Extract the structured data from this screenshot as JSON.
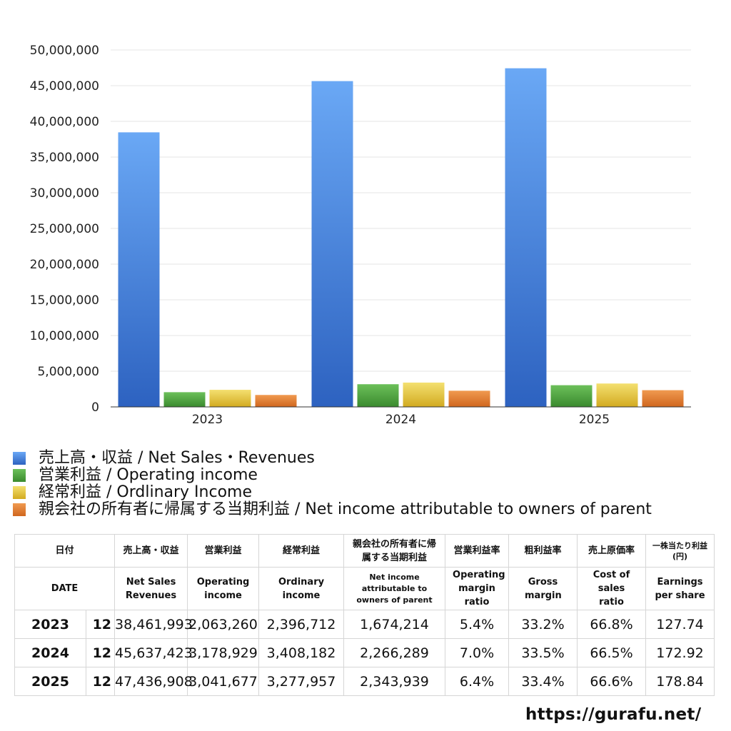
{
  "chart_data": {
    "type": "bar",
    "categories": [
      "2023",
      "2024",
      "2025"
    ],
    "series": [
      {
        "name": "売上高・収益 / Net Sales・Revenues",
        "color": "#3f7fd8",
        "values": [
          38461993,
          45637423,
          47436908
        ]
      },
      {
        "name": "営業利益 / Operating income",
        "color": "#4a9e3a",
        "values": [
          2063260,
          3178929,
          3041677
        ]
      },
      {
        "name": "経常利益 / Ordlinary Income",
        "color": "#e2c63a",
        "values": [
          2396712,
          3408182,
          3277957
        ]
      },
      {
        "name": "親会社の所有者に帰属する当期利益 / Net income attributable to owners of parent",
        "color": "#e07a30",
        "values": [
          1674214,
          2266289,
          2343939
        ]
      }
    ],
    "yticks": [
      "0",
      "5,000,000",
      "10,000,000",
      "15,000,000",
      "20,000,000",
      "25,000,000",
      "30,000,000",
      "35,000,000",
      "40,000,000",
      "45,000,000",
      "50,000,000"
    ],
    "ylim": [
      0,
      50000000
    ],
    "grid": true,
    "legend_position": "bottom-left"
  },
  "table": {
    "header_ja": [
      "日付",
      "売上高・収益",
      "営業利益",
      "経常利益",
      "親会社の所有者に帰属する当期利益",
      "営業利益率",
      "粗利益率",
      "売上原価率",
      "一株当たり利益(円)"
    ],
    "header_en": [
      "DATE",
      "Net Sales Revenues",
      "Operating income",
      "Ordinary income",
      "Net income attributable to owners of parent",
      "Operating margin ratio",
      "Gross margin",
      "Cost of sales ratio",
      "Earnings per share"
    ],
    "rows": [
      {
        "year": "2023",
        "month": "12",
        "cells": [
          "38,461,993",
          "2,063,260",
          "2,396,712",
          "1,674,214",
          "5.4%",
          "33.2%",
          "66.8%",
          "127.74"
        ]
      },
      {
        "year": "2024",
        "month": "12",
        "cells": [
          "45,637,423",
          "3,178,929",
          "3,408,182",
          "2,266,289",
          "7.0%",
          "33.5%",
          "66.5%",
          "172.92"
        ]
      },
      {
        "year": "2025",
        "month": "12",
        "cells": [
          "47,436,908",
          "3,041,677",
          "3,277,957",
          "2,343,939",
          "6.4%",
          "33.4%",
          "66.6%",
          "178.84"
        ]
      }
    ]
  },
  "footer": {
    "site": "https://gurafu.net/"
  }
}
